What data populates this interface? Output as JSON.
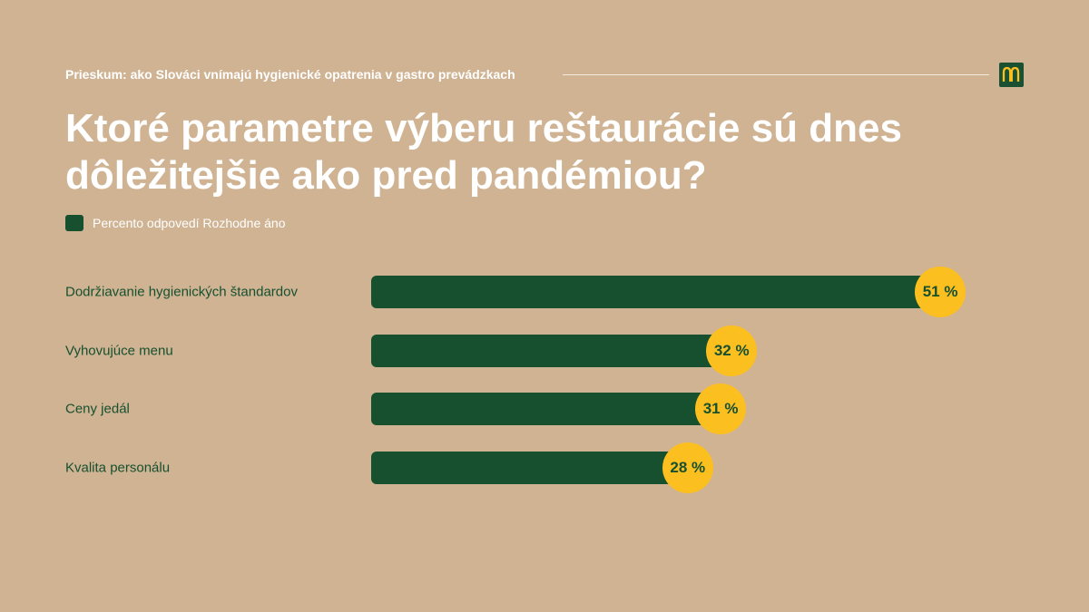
{
  "header": {
    "subtitle": "Prieskum: ako Slováci vnímajú hygienické opatrenia v gastro prevádzkach",
    "logo": "mcdonalds-arches-logo",
    "logo_bg": "#1a5132",
    "logo_color": "#fcbf20"
  },
  "title": "Ktoré parametre výberu reštaurácie sú dnes dôležitejšie ako pred pandémiou?",
  "colors": {
    "background": "#cfb393",
    "bar": "#16502f",
    "bubble": "#fcbf20",
    "text_light": "#ffffff",
    "text_dark": "#16502f"
  },
  "chart_data": {
    "type": "bar",
    "orientation": "horizontal",
    "legend": "Percento odpovedí Rozhodne áno",
    "legend_placement": "top-left",
    "categories": [
      "Dodržiavanie hygienických štandardov",
      "Vyhovujúce menu",
      "Ceny jedál",
      "Kvalita personálu"
    ],
    "values": [
      51,
      32,
      31,
      28
    ],
    "value_labels": [
      "51 %",
      "32 %",
      "31 %",
      "28 %"
    ],
    "unit": "%",
    "grid": false
  }
}
